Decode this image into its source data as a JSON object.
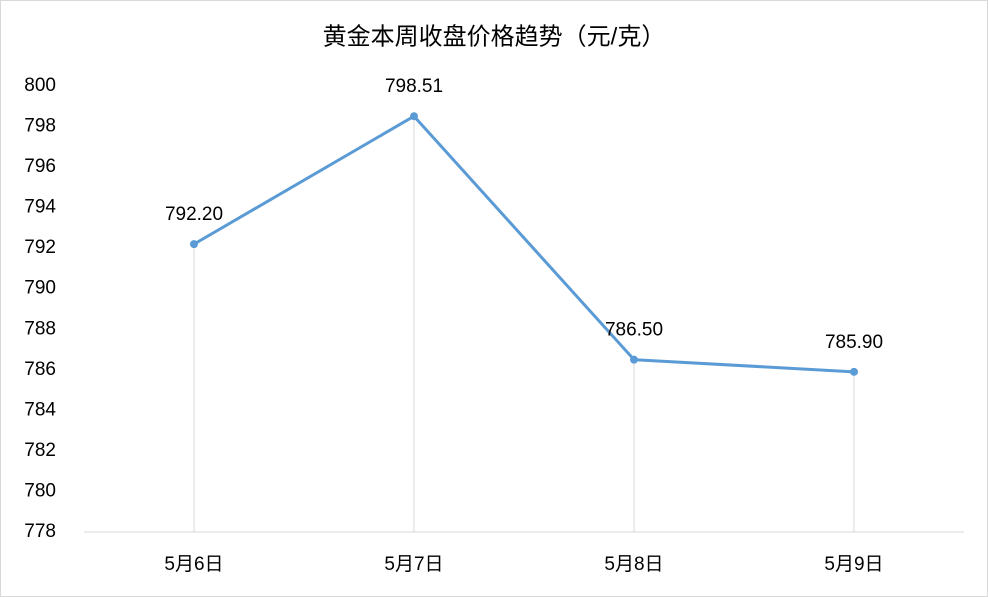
{
  "chart_data": {
    "type": "line",
    "title": "黄金本周收盘价格趋势（元/克）",
    "categories": [
      "5月6日",
      "5月7日",
      "5月8日",
      "5月9日"
    ],
    "values": [
      792.2,
      798.51,
      786.5,
      785.9
    ],
    "value_labels": [
      "792.20",
      "798.51",
      "786.50",
      "785.90"
    ],
    "color": "#5b9bd5",
    "ylim": [
      778,
      800
    ],
    "yticks": [
      778,
      780,
      782,
      784,
      786,
      788,
      790,
      792,
      794,
      796,
      798,
      800
    ],
    "drop_lines": true
  }
}
